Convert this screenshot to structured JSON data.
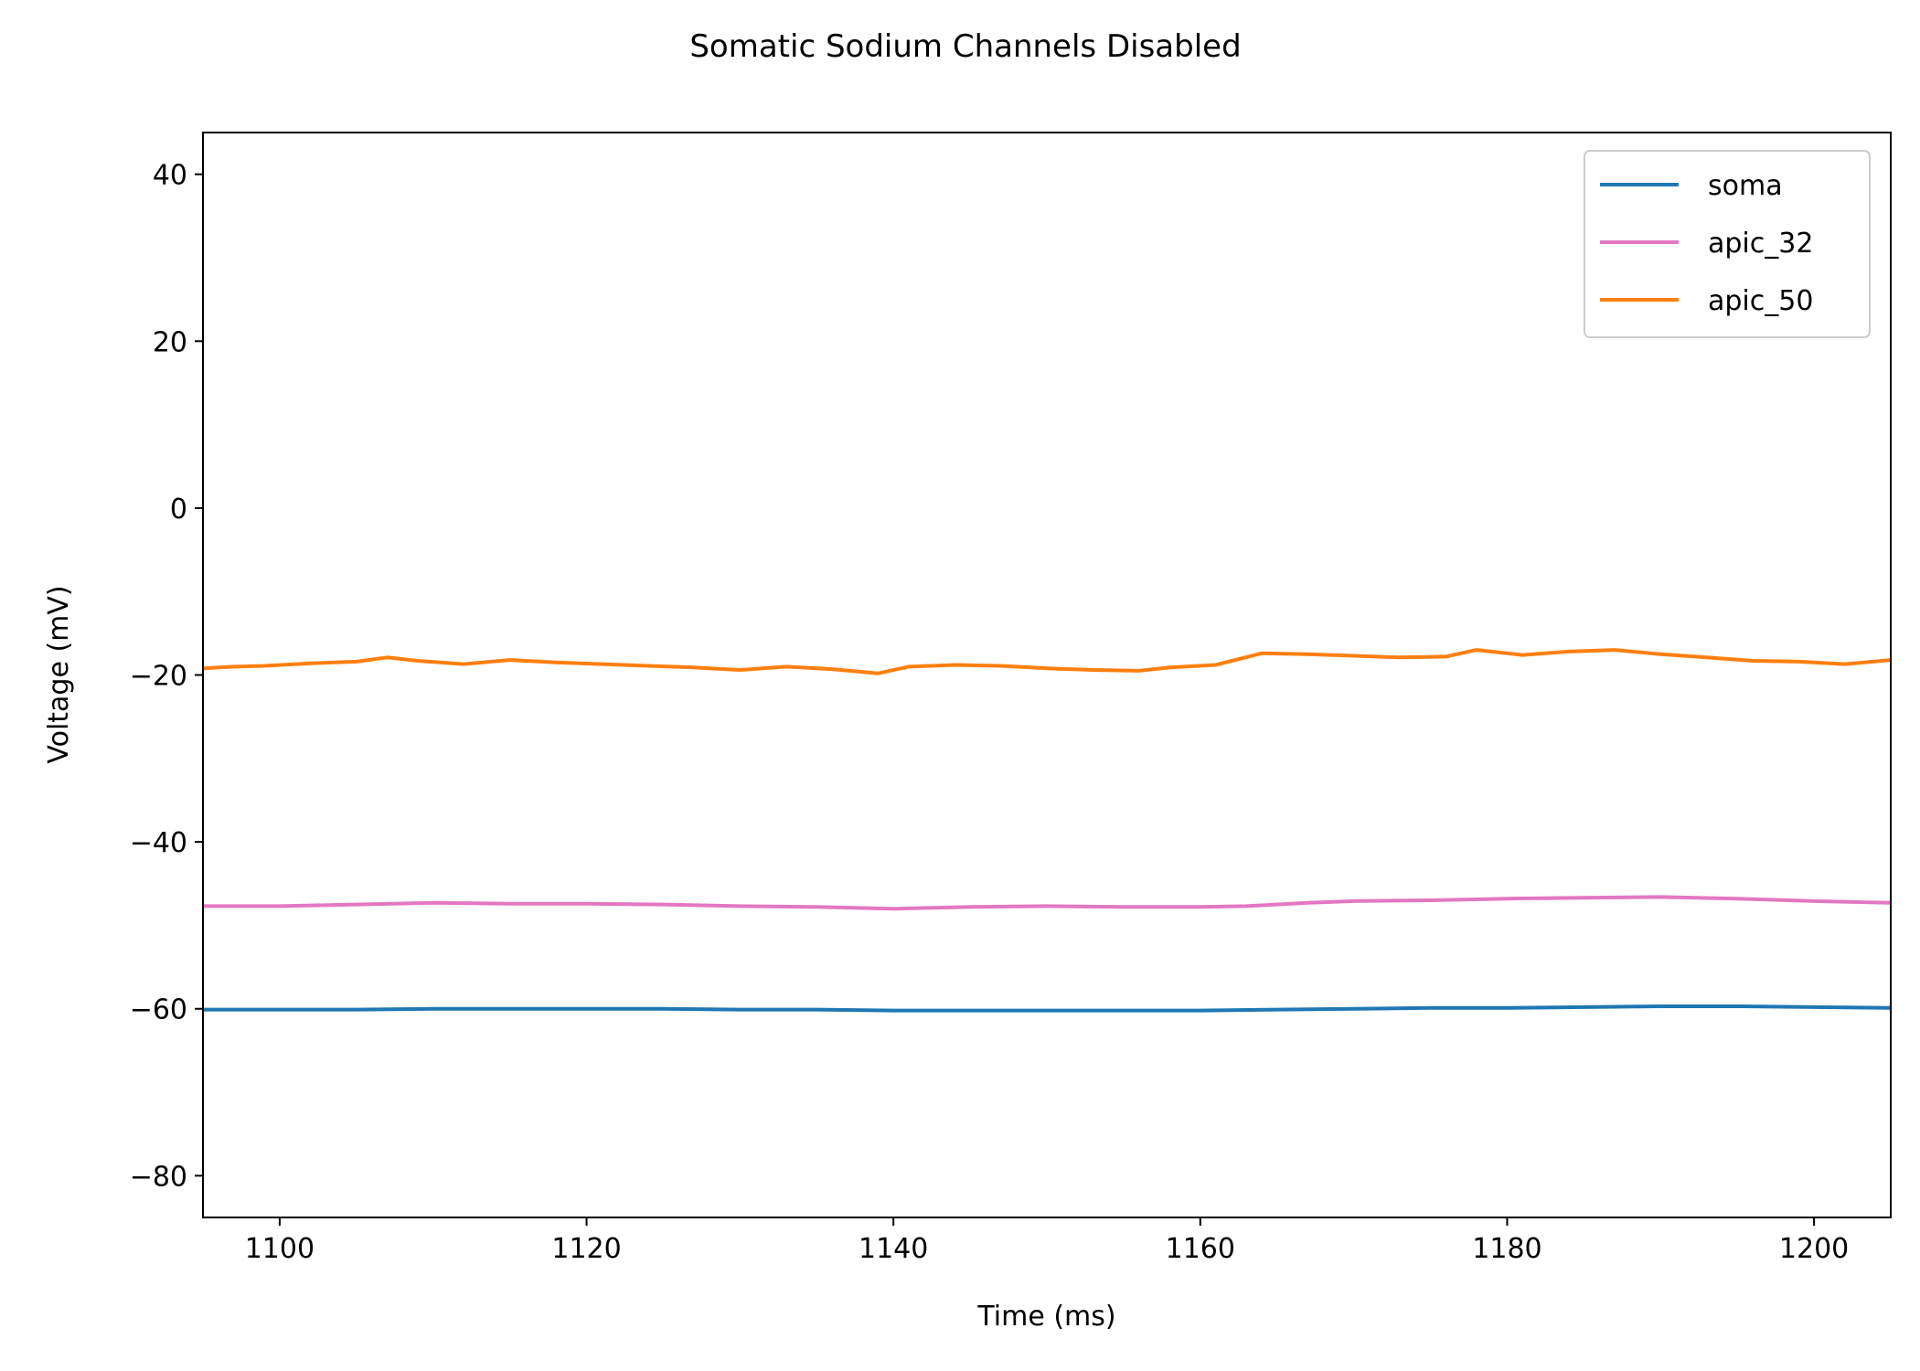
{
  "chart_data": {
    "type": "line",
    "title": "Somatic Sodium Channels Disabled",
    "xlabel": "Time (ms)",
    "ylabel": "Voltage (mV)",
    "xlim": [
      1095,
      1205
    ],
    "ylim": [
      -85,
      45
    ],
    "xticks": [
      1100,
      1120,
      1140,
      1160,
      1180,
      1200
    ],
    "xtick_labels": [
      "1100",
      "1120",
      "1140",
      "1160",
      "1180",
      "1200"
    ],
    "yticks": [
      40,
      20,
      0,
      -20,
      -40,
      -60,
      -80
    ],
    "ytick_labels": [
      "40",
      "20",
      "0",
      "−20",
      "−40",
      "−60",
      "−80"
    ],
    "grid": false,
    "legend_position": "top-right",
    "series": [
      {
        "name": "soma",
        "color": "#1f77b4",
        "points": [
          [
            1095,
            -60.1
          ],
          [
            1100,
            -60.1
          ],
          [
            1105,
            -60.1
          ],
          [
            1110,
            -60.0
          ],
          [
            1115,
            -60.0
          ],
          [
            1120,
            -60.0
          ],
          [
            1125,
            -60.0
          ],
          [
            1130,
            -60.1
          ],
          [
            1135,
            -60.1
          ],
          [
            1140,
            -60.2
          ],
          [
            1145,
            -60.2
          ],
          [
            1150,
            -60.2
          ],
          [
            1155,
            -60.2
          ],
          [
            1160,
            -60.2
          ],
          [
            1165,
            -60.1
          ],
          [
            1170,
            -60.0
          ],
          [
            1175,
            -59.9
          ],
          [
            1180,
            -59.9
          ],
          [
            1185,
            -59.8
          ],
          [
            1190,
            -59.7
          ],
          [
            1195,
            -59.7
          ],
          [
            1200,
            -59.8
          ],
          [
            1205,
            -59.9
          ]
        ]
      },
      {
        "name": "apic_32",
        "color": "#e377c2",
        "points": [
          [
            1095,
            -47.7
          ],
          [
            1100,
            -47.7
          ],
          [
            1105,
            -47.5
          ],
          [
            1110,
            -47.3
          ],
          [
            1115,
            -47.4
          ],
          [
            1120,
            -47.4
          ],
          [
            1125,
            -47.5
          ],
          [
            1130,
            -47.7
          ],
          [
            1135,
            -47.8
          ],
          [
            1140,
            -48.0
          ],
          [
            1145,
            -47.8
          ],
          [
            1150,
            -47.7
          ],
          [
            1155,
            -47.8
          ],
          [
            1160,
            -47.8
          ],
          [
            1163,
            -47.7
          ],
          [
            1167,
            -47.3
          ],
          [
            1170,
            -47.1
          ],
          [
            1175,
            -47.0
          ],
          [
            1180,
            -46.8
          ],
          [
            1185,
            -46.7
          ],
          [
            1190,
            -46.6
          ],
          [
            1195,
            -46.8
          ],
          [
            1200,
            -47.1
          ],
          [
            1205,
            -47.3
          ]
        ]
      },
      {
        "name": "apic_50",
        "color": "#ff7f0e",
        "points": [
          [
            1095,
            -19.2
          ],
          [
            1097,
            -19.0
          ],
          [
            1099,
            -18.9
          ],
          [
            1102,
            -18.6
          ],
          [
            1105,
            -18.4
          ],
          [
            1107,
            -17.9
          ],
          [
            1109,
            -18.3
          ],
          [
            1112,
            -18.7
          ],
          [
            1115,
            -18.2
          ],
          [
            1118,
            -18.5
          ],
          [
            1121,
            -18.7
          ],
          [
            1124,
            -18.9
          ],
          [
            1127,
            -19.1
          ],
          [
            1130,
            -19.4
          ],
          [
            1133,
            -19.0
          ],
          [
            1136,
            -19.3
          ],
          [
            1139,
            -19.8
          ],
          [
            1141,
            -19.0
          ],
          [
            1144,
            -18.8
          ],
          [
            1147,
            -18.9
          ],
          [
            1150,
            -19.2
          ],
          [
            1153,
            -19.4
          ],
          [
            1156,
            -19.5
          ],
          [
            1158,
            -19.1
          ],
          [
            1161,
            -18.8
          ],
          [
            1164,
            -17.4
          ],
          [
            1167,
            -17.5
          ],
          [
            1170,
            -17.7
          ],
          [
            1173,
            -17.9
          ],
          [
            1176,
            -17.8
          ],
          [
            1178,
            -17.0
          ],
          [
            1181,
            -17.6
          ],
          [
            1184,
            -17.2
          ],
          [
            1187,
            -17.0
          ],
          [
            1190,
            -17.5
          ],
          [
            1193,
            -17.9
          ],
          [
            1196,
            -18.3
          ],
          [
            1199,
            -18.4
          ],
          [
            1202,
            -18.7
          ],
          [
            1205,
            -18.2
          ]
        ]
      }
    ]
  }
}
